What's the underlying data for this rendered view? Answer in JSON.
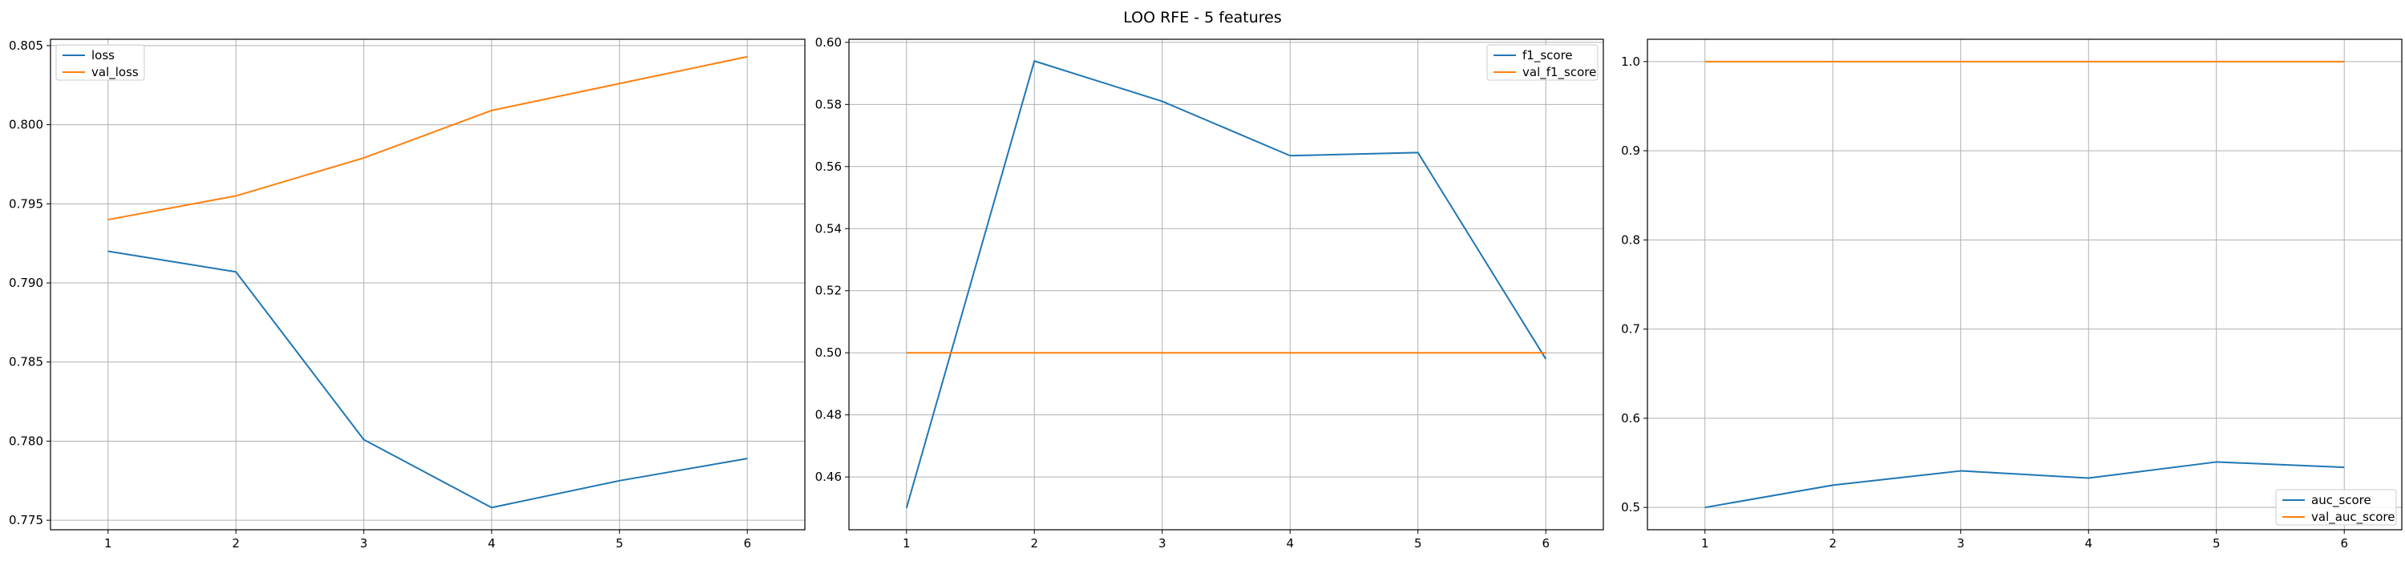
{
  "figure": {
    "title": "LOO RFE - 5 features"
  },
  "colors": {
    "series_1": "#1f77b4",
    "series_2": "#ff7f0e",
    "grid": "#b0b0b0",
    "axes": "#000000"
  },
  "chart_data": [
    {
      "type": "line",
      "x": [
        1,
        2,
        3,
        4,
        5,
        6
      ],
      "xlim": [
        0.55,
        6.45
      ],
      "ylim": [
        0.7744,
        0.8054
      ],
      "yticks": [
        0.775,
        0.78,
        0.785,
        0.79,
        0.795,
        0.8,
        0.805
      ],
      "ytick_labels": [
        "0.775",
        "0.780",
        "0.785",
        "0.790",
        "0.795",
        "0.800",
        "0.805"
      ],
      "xtick_labels": [
        "1",
        "2",
        "3",
        "4",
        "5",
        "6"
      ],
      "grid": true,
      "legend_position": "top-left",
      "series": [
        {
          "name": "loss",
          "values": [
            0.792,
            0.7907,
            0.7801,
            0.7758,
            0.7775,
            0.7789
          ]
        },
        {
          "name": "val_loss",
          "values": [
            0.794,
            0.7955,
            0.7979,
            0.8009,
            0.8026,
            0.8043
          ]
        }
      ]
    },
    {
      "type": "line",
      "x": [
        1,
        2,
        3,
        4,
        5,
        6
      ],
      "xlim": [
        0.55,
        6.45
      ],
      "ylim": [
        0.443,
        0.601
      ],
      "yticks": [
        0.46,
        0.48,
        0.5,
        0.52,
        0.54,
        0.56,
        0.58,
        0.6
      ],
      "ytick_labels": [
        "0.46",
        "0.48",
        "0.50",
        "0.52",
        "0.54",
        "0.56",
        "0.58",
        "0.60"
      ],
      "xtick_labels": [
        "1",
        "2",
        "3",
        "4",
        "5",
        "6"
      ],
      "grid": true,
      "legend_position": "top-right",
      "series": [
        {
          "name": "f1_score",
          "values": [
            0.45,
            0.594,
            0.581,
            0.5635,
            0.5645,
            0.498
          ]
        },
        {
          "name": "val_f1_score",
          "values": [
            0.5,
            0.5,
            0.5,
            0.5,
            0.5,
            0.5
          ]
        }
      ]
    },
    {
      "type": "line",
      "x": [
        1,
        2,
        3,
        4,
        5,
        6
      ],
      "xlim": [
        0.55,
        6.45
      ],
      "ylim": [
        0.475,
        1.025
      ],
      "yticks": [
        0.5,
        0.6,
        0.7,
        0.8,
        0.9,
        1.0
      ],
      "ytick_labels": [
        "0.5",
        "0.6",
        "0.7",
        "0.8",
        "0.9",
        "1.0"
      ],
      "xtick_labels": [
        "1",
        "2",
        "3",
        "4",
        "5",
        "6"
      ],
      "grid": true,
      "legend_position": "bottom-right",
      "series": [
        {
          "name": "auc_score",
          "values": [
            0.5,
            0.525,
            0.541,
            0.533,
            0.551,
            0.545
          ]
        },
        {
          "name": "val_auc_score",
          "values": [
            1.0,
            1.0,
            1.0,
            1.0,
            1.0,
            1.0
          ]
        }
      ]
    }
  ]
}
